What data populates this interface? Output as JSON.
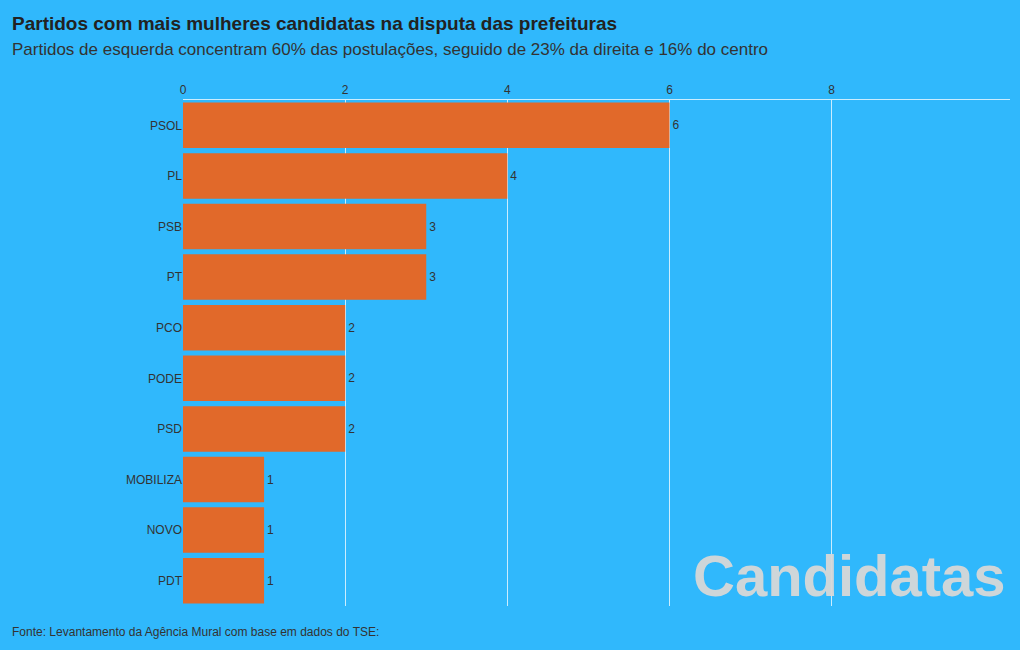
{
  "chart_data": {
    "type": "bar",
    "title": "Partidos com mais mulheres candidatas na disputa das prefeituras",
    "subtitle": "Partidos de esquerda concentram 60% das postulações, seguido de 23% da direita e 16% do centro",
    "source": "Fonte: Levantamento da Agência Mural com base em dados do TSE:",
    "annotations": [
      {
        "text": "Candidatas"
      }
    ],
    "orientation": "horizontal",
    "categories": [
      "PSOL",
      "PL",
      "PSB",
      "PT",
      "PCO",
      "PODE",
      "PSD",
      "MOBILIZA",
      "NOVO",
      "PDT"
    ],
    "values": [
      6,
      4,
      3,
      3,
      2,
      2,
      2,
      1,
      1,
      1
    ],
    "color": "#e1692a",
    "xlim": [
      0,
      10.2
    ],
    "xticks": [
      0,
      2,
      4,
      6,
      8
    ],
    "grid": true,
    "data_labels": true
  }
}
